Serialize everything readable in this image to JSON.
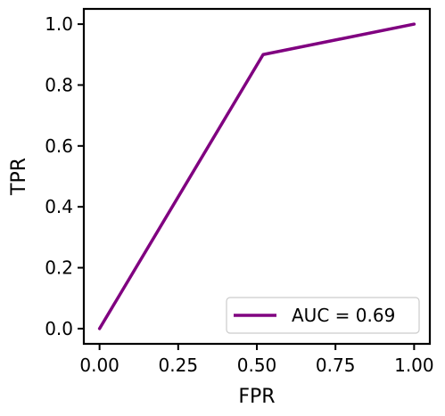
{
  "chart_data": {
    "type": "line",
    "title": "",
    "xlabel": "FPR",
    "ylabel": "TPR",
    "xlim": [
      -0.05,
      1.05
    ],
    "ylim": [
      -0.05,
      1.05
    ],
    "xticks": [
      0.0,
      0.25,
      0.5,
      0.75,
      1.0
    ],
    "xtick_labels": [
      "0.00",
      "0.25",
      "0.50",
      "0.75",
      "1.00"
    ],
    "yticks": [
      0.0,
      0.2,
      0.4,
      0.6,
      0.8,
      1.0
    ],
    "ytick_labels": [
      "0.0",
      "0.2",
      "0.4",
      "0.6",
      "0.8",
      "1.0"
    ],
    "grid": false,
    "legend_position": "lower-right",
    "series": [
      {
        "name": "AUC = 0.69",
        "color": "#800080",
        "x": [
          0.0,
          0.52,
          1.0
        ],
        "y": [
          0.0,
          0.9,
          1.0
        ]
      }
    ]
  }
}
